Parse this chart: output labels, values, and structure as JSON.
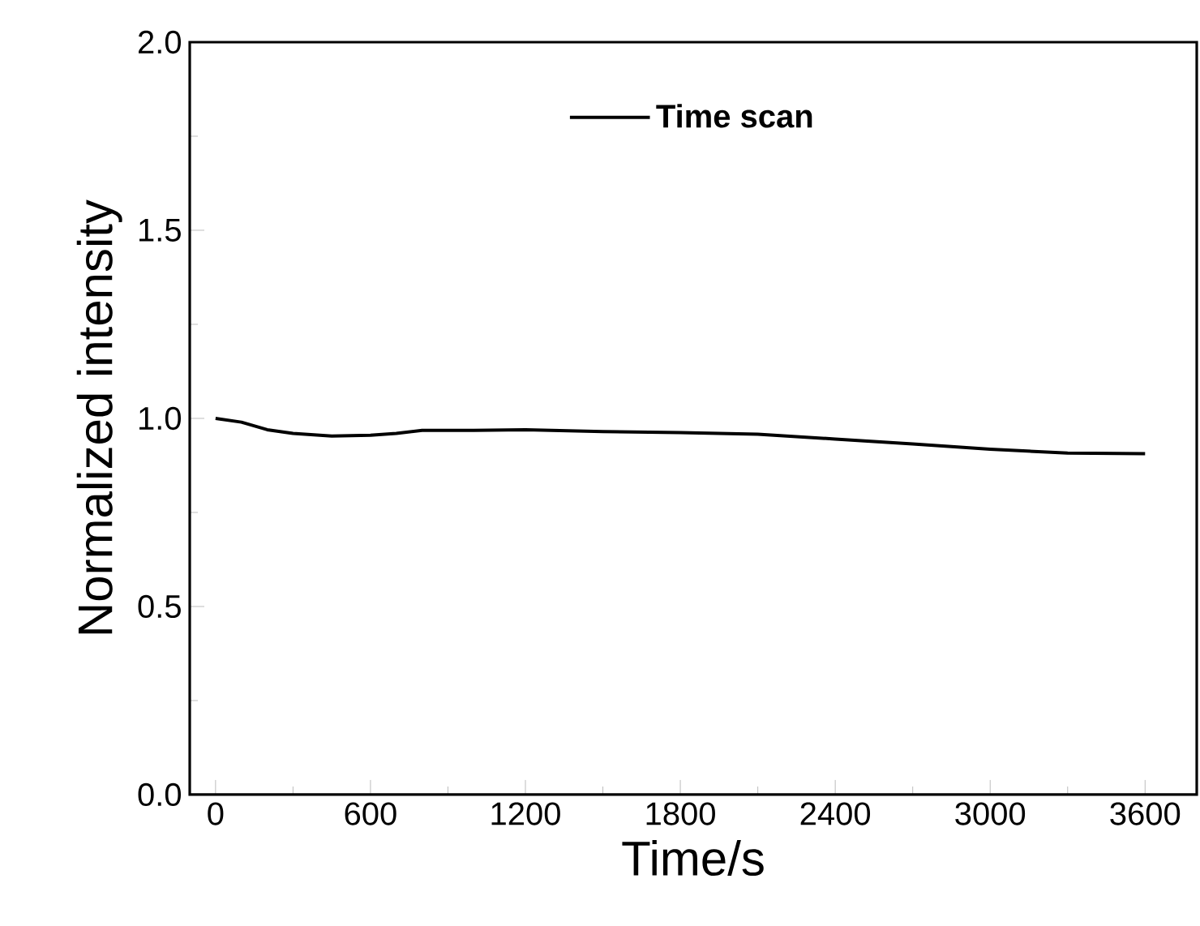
{
  "chart_data": {
    "type": "line",
    "xlabel": "Time/s",
    "ylabel": "Normalized intensity",
    "x": [
      0,
      100,
      200,
      300,
      450,
      600,
      700,
      800,
      1000,
      1200,
      1500,
      1800,
      2100,
      2400,
      2700,
      3000,
      3300,
      3600
    ],
    "series": [
      {
        "name": "Time scan",
        "color": "#000000",
        "values": [
          1.0,
          0.99,
          0.97,
          0.96,
          0.953,
          0.955,
          0.96,
          0.968,
          0.968,
          0.97,
          0.965,
          0.962,
          0.958,
          0.945,
          0.932,
          0.918,
          0.908,
          0.906
        ]
      }
    ],
    "xlim": [
      -100,
      3800
    ],
    "ylim": [
      0,
      2
    ],
    "xticks": [
      0,
      600,
      1200,
      1800,
      2400,
      3000,
      3600
    ],
    "yticks": [
      {
        "value": 0,
        "label": "0.0"
      },
      {
        "value": 0.5,
        "label": "0.5"
      },
      {
        "value": 1,
        "label": "1.0"
      },
      {
        "value": 1.5,
        "label": "1.5"
      },
      {
        "value": 2,
        "label": "2.0"
      }
    ],
    "legend": "top",
    "grid": false,
    "marker": "none",
    "line_style": "solid"
  }
}
